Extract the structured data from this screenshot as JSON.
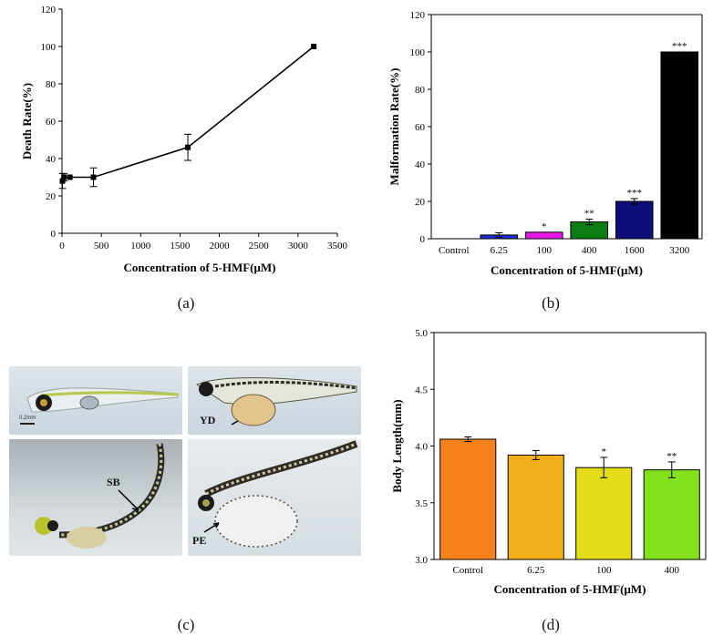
{
  "panel_labels": {
    "a": "(a)",
    "b": "(b)",
    "c": "(c)",
    "d": "(d)"
  },
  "panel_c": {
    "labels": {
      "yd": "YD",
      "sb": "SB",
      "pe": "PE"
    },
    "scale_bar_label": "0.2mm"
  },
  "colors": {
    "axis": "#000000",
    "line": "#000000",
    "bars_b": [
      "#c0392b",
      "#1f2bd8",
      "#e818e8",
      "#0e7d14",
      "#0d0d7a"
    ],
    "bars_d": [
      "#f7821c",
      "#f2ae1a",
      "#e4dc18",
      "#84e21c"
    ]
  },
  "chart_data": [
    {
      "id": "a",
      "type": "line",
      "title": "",
      "xlabel": "Concentration of 5-HMF(μM)",
      "ylabel": "Death Rate(%)",
      "xlim": [
        0,
        3500
      ],
      "ylim": [
        0,
        120
      ],
      "xticks": [
        "0",
        "500",
        "1000",
        "1500",
        "2000",
        "2500",
        "3000",
        "3500"
      ],
      "xtick_values": [
        0,
        500,
        1000,
        1500,
        2000,
        2500,
        3000,
        3500
      ],
      "yticks": [
        "0",
        "20",
        "40",
        "60",
        "80",
        "100",
        "120"
      ],
      "ytick_values": [
        0,
        20,
        40,
        60,
        80,
        100,
        120
      ],
      "x": [
        6.25,
        25,
        100,
        400,
        1600,
        3200
      ],
      "y": [
        28,
        30,
        30,
        30,
        46,
        100
      ],
      "err": [
        4,
        2,
        0,
        5,
        7,
        0
      ],
      "grid": false
    },
    {
      "id": "b",
      "type": "bar",
      "title": "",
      "xlabel": "Concentration of 5-HMF(μM)",
      "ylabel": "Malformation Rate(%)",
      "ylim": [
        0,
        120
      ],
      "yticks": [
        "0",
        "20",
        "40",
        "60",
        "80",
        "100",
        "120"
      ],
      "ytick_values": [
        0,
        20,
        40,
        60,
        80,
        100,
        120
      ],
      "categories": [
        "Control",
        "6.25",
        "100",
        "400",
        "1600",
        "3200"
      ],
      "values": [
        0,
        2,
        3.5,
        9,
        20,
        100
      ],
      "err": [
        0,
        1.2,
        0,
        1.5,
        1.5,
        0
      ],
      "significance": [
        "",
        "",
        "*",
        "**",
        "***",
        "***"
      ],
      "grid": false
    },
    {
      "id": "d",
      "type": "bar",
      "title": "",
      "xlabel": "Concentration of 5-HMF(μM)",
      "ylabel": "Body Length(mm)",
      "ylim": [
        3.0,
        5.0
      ],
      "yticks": [
        "3.0",
        "3.5",
        "4.0",
        "4.5",
        "5.0"
      ],
      "ytick_values": [
        3.0,
        3.5,
        4.0,
        4.5,
        5.0
      ],
      "categories": [
        "Control",
        "6.25",
        "100",
        "400"
      ],
      "values": [
        4.06,
        3.92,
        3.81,
        3.79
      ],
      "err": [
        0.02,
        0.04,
        0.09,
        0.07
      ],
      "significance": [
        "",
        "",
        "*",
        "**"
      ],
      "grid": false
    }
  ]
}
